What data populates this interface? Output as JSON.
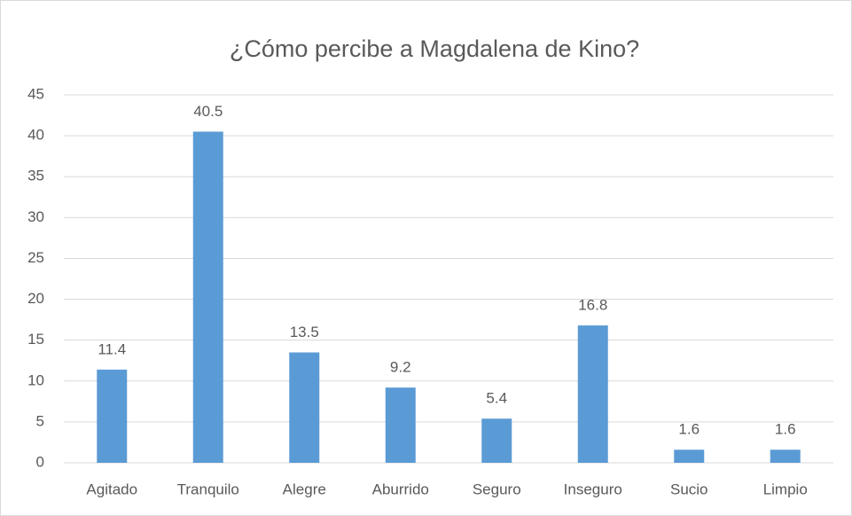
{
  "chart_data": {
    "type": "bar",
    "title": "¿Cómo percibe a Magdalena de Kino?",
    "categories": [
      "Agitado",
      "Tranquilo",
      "Alegre",
      "Aburrido",
      "Seguro",
      "Inseguro",
      "Sucio",
      "Limpio"
    ],
    "values": [
      11.4,
      40.5,
      13.5,
      9.2,
      5.4,
      16.8,
      1.6,
      1.6
    ],
    "color": "#5b9bd5",
    "ylim": [
      0,
      45
    ],
    "yticks": [
      0,
      5,
      10,
      15,
      20,
      25,
      30,
      35,
      40,
      45
    ],
    "grid": true
  }
}
